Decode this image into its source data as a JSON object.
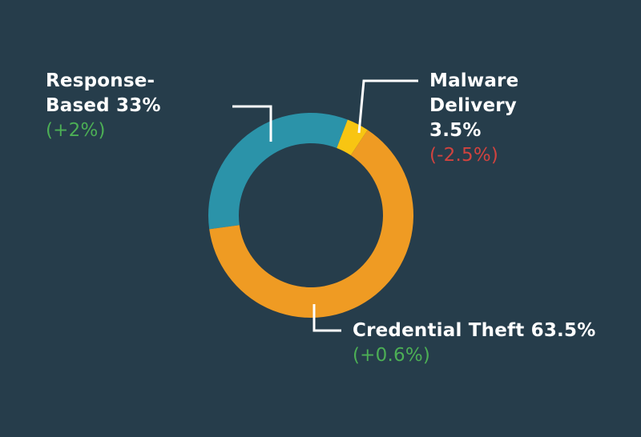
{
  "chart_data": {
    "type": "donut",
    "categories": [
      "Response-Based",
      "Malware Delivery",
      "Credential Theft"
    ],
    "values": [
      33,
      3.5,
      63.5
    ],
    "value_labels": [
      "33%",
      "3.5%",
      "63.5%"
    ],
    "changes": [
      2,
      -2.5,
      0.6
    ],
    "change_labels": [
      "(+2%)",
      "(-2.5%)",
      "(+0.6%)"
    ],
    "colors": [
      "#2b93a9",
      "#f8c512",
      "#ef9b23"
    ],
    "positive_color": "#4caf55",
    "negative_color": "#d0433f"
  }
}
